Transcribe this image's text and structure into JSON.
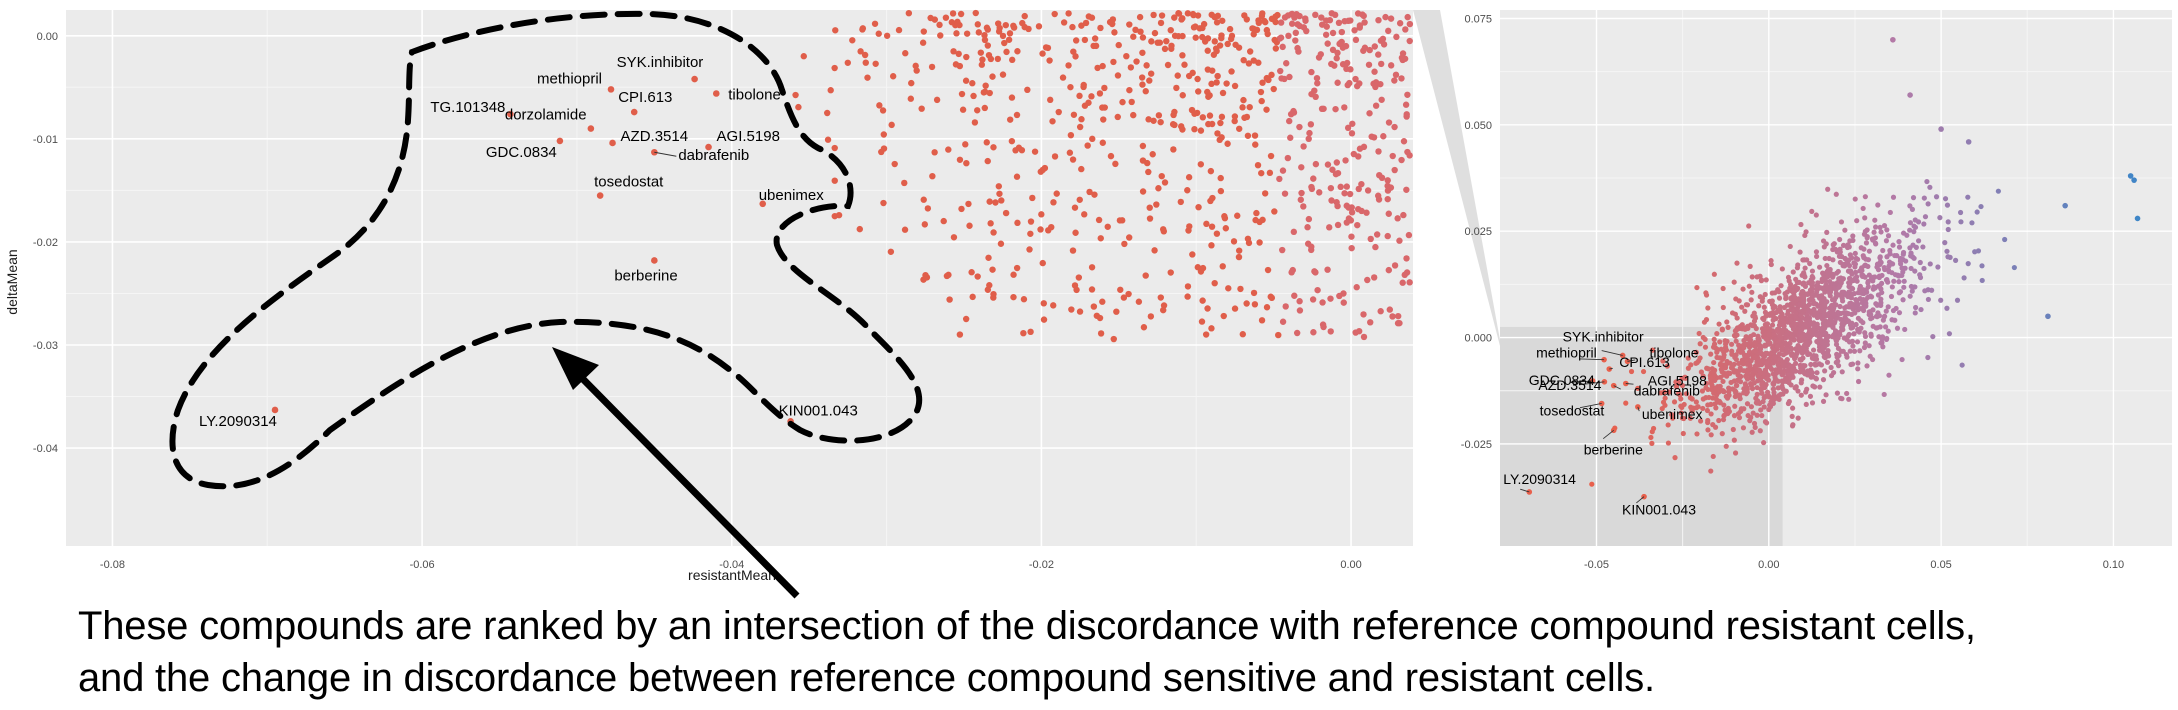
{
  "chart_data": [
    {
      "type": "scatter",
      "xlabel": "resistantMean",
      "ylabel": "deltaMean",
      "xlim": [
        -0.083,
        0.004
      ],
      "ylim": [
        -0.0495,
        0.0025
      ],
      "x_ticks": [
        "-0.08",
        "-0.06",
        "-0.04",
        "-0.02",
        "0.00"
      ],
      "x_tick_values": [
        -0.08,
        -0.06,
        -0.04,
        -0.02,
        0.0
      ],
      "y_ticks": [
        "0.00",
        "-0.01",
        "-0.02",
        "-0.03",
        "-0.04"
      ],
      "y_tick_values": [
        0.0,
        -0.01,
        -0.02,
        -0.03,
        -0.04
      ],
      "grid": true,
      "legend": "none",
      "point_color": "#e05e4a",
      "labeled_points": [
        {
          "label": "SYK.inhibitor",
          "x": -0.0424,
          "y": -0.0042
        },
        {
          "label": "methiopril",
          "x": -0.0478,
          "y": -0.0052
        },
        {
          "label": "tibolone",
          "x": -0.041,
          "y": -0.0056
        },
        {
          "label": "TG.101348",
          "x": -0.0543,
          "y": -0.0076
        },
        {
          "label": "CPI.613",
          "x": -0.0463,
          "y": -0.0074
        },
        {
          "label": "dorzolamide",
          "x": -0.0491,
          "y": -0.009
        },
        {
          "label": "AGI.5198",
          "x": -0.0415,
          "y": -0.0108
        },
        {
          "label": "GDC.0834",
          "x": -0.0511,
          "y": -0.0102
        },
        {
          "label": "AZD.3514",
          "x": -0.0477,
          "y": -0.0104
        },
        {
          "label": "dabrafenib",
          "x": -0.045,
          "y": -0.0113
        },
        {
          "label": "tosedostat",
          "x": -0.0485,
          "y": -0.0155
        },
        {
          "label": "ubenimex",
          "x": -0.038,
          "y": -0.0163
        },
        {
          "label": "berberine",
          "x": -0.045,
          "y": -0.0218
        },
        {
          "label": "LY.2090314",
          "x": -0.0695,
          "y": -0.0363
        },
        {
          "label": "KIN001.043",
          "x": -0.0362,
          "y": -0.0374
        }
      ]
    },
    {
      "type": "scatter",
      "xlabel": "",
      "ylabel": "",
      "xlim": [
        -0.078,
        0.117
      ],
      "ylim": [
        -0.049,
        0.077
      ],
      "x_ticks": [
        "-0.05",
        "0.00",
        "0.05",
        "0.10"
      ],
      "x_tick_values": [
        -0.05,
        0.0,
        0.05,
        0.1
      ],
      "y_ticks": [
        "0.075",
        "0.050",
        "0.025",
        "0.000",
        "-0.025"
      ],
      "y_tick_values": [
        0.075,
        0.05,
        0.025,
        0.0,
        -0.025
      ],
      "grid": true,
      "legend": "none",
      "highlight_region": {
        "x": [
          -0.078,
          0.004
        ],
        "y": [
          -0.049,
          0.0025
        ]
      },
      "color_scale": {
        "low": "#e8604c",
        "mid": "#b27aa8",
        "high": "#3a86c8"
      },
      "labeled_points": [
        {
          "label": "SYK.inhibitor",
          "x": -0.0424,
          "y": -0.0042
        },
        {
          "label": "tibolone",
          "x": -0.041,
          "y": -0.0056
        },
        {
          "label": "methiopril",
          "x": -0.0478,
          "y": -0.0052
        },
        {
          "label": "GDC.0834",
          "x": -0.0511,
          "y": -0.0102
        },
        {
          "label": "CPI.613",
          "x": -0.0463,
          "y": -0.0074
        },
        {
          "label": "AGI.5198",
          "x": -0.0415,
          "y": -0.0108
        },
        {
          "label": "AZD.3514",
          "x": -0.0477,
          "y": -0.0104
        },
        {
          "label": "dabrafenib",
          "x": -0.045,
          "y": -0.0113
        },
        {
          "label": "tosedostat",
          "x": -0.0485,
          "y": -0.0155
        },
        {
          "label": "ubenimex",
          "x": -0.038,
          "y": -0.0163
        },
        {
          "label": "berberine",
          "x": -0.045,
          "y": -0.0218
        },
        {
          "label": "LY.2090314",
          "x": -0.0695,
          "y": -0.0363
        },
        {
          "label": "KIN001.043",
          "x": -0.0362,
          "y": -0.0374
        }
      ]
    }
  ],
  "caption": {
    "line1": "These compounds are ranked by an intersection of the discordance with reference compound resistant cells,",
    "line2": "and the change in discordance between reference compound sensitive and resistant cells."
  }
}
